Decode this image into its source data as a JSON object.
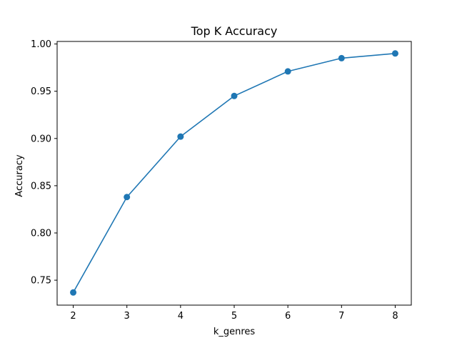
{
  "chart_data": {
    "type": "line",
    "title": "Top K Accuracy",
    "xlabel": "k_genres",
    "ylabel": "Accuracy",
    "x": [
      2,
      3,
      4,
      5,
      6,
      7,
      8
    ],
    "series": [
      {
        "values": [
          0.737,
          0.838,
          0.902,
          0.945,
          0.971,
          0.985,
          0.99
        ],
        "color": "#1f77b4",
        "marker": "circle"
      }
    ],
    "xlim": [
      1.7,
      8.3
    ],
    "ylim": [
      0.7236,
      1.0027
    ],
    "xticks": [
      2,
      3,
      4,
      5,
      6,
      7,
      8
    ],
    "yticks": [
      0.75,
      0.8,
      0.85,
      0.9,
      0.95,
      1.0
    ],
    "ytick_labels": [
      "0.75",
      "0.80",
      "0.85",
      "0.90",
      "0.95",
      "1.00"
    ],
    "grid": false,
    "legend": false
  }
}
